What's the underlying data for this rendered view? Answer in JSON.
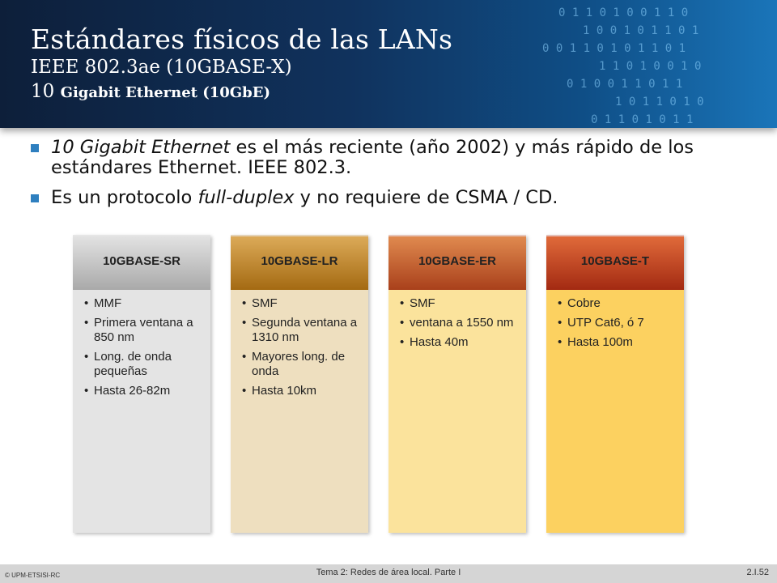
{
  "header": {
    "title": "Estándares físicos de las LANs",
    "subtitle1": "IEEE 802.3ae (10GBASE-X)",
    "subtitle2_num": "10",
    "subtitle2_text": "Gigabit Ethernet (10GbE)"
  },
  "bullets": [
    {
      "em": "10 Gigabit Ethernet",
      "text": " es el más reciente (año 2002) y más rápido de los estándares Ethernet. IEEE 802.3."
    },
    {
      "pre": "Es un protocolo ",
      "em": "full-duplex",
      "post": " y no requiere de CSMA / CD."
    }
  ],
  "columns": [
    {
      "title": "10GBASE-SR",
      "items": [
        "MMF",
        "Primera ventana a 850 nm",
        "Long. de onda pequeñas",
        "Hasta 26-82m"
      ]
    },
    {
      "title": "10GBASE-LR",
      "items": [
        "SMF",
        "Segunda ventana a 1310 nm",
        "Mayores long. de onda",
        "Hasta 10km"
      ]
    },
    {
      "title": "10GBASE-ER",
      "items": [
        "SMF",
        "ventana a 1550 nm",
        "Hasta 40m"
      ]
    },
    {
      "title": "10GBASE-T",
      "items": [
        "Cobre",
        "UTP Cat6, ó 7",
        "Hasta 100m"
      ]
    }
  ],
  "footer": {
    "left": "© UPM-ETSISI-RC",
    "center": "Tema 2: Redes de área local. Parte I",
    "right": "2.I.52"
  },
  "colors": {
    "header_dark": "#0d1f3a",
    "header_light": "#1a75b9",
    "bullet": "#2e7fbf"
  }
}
